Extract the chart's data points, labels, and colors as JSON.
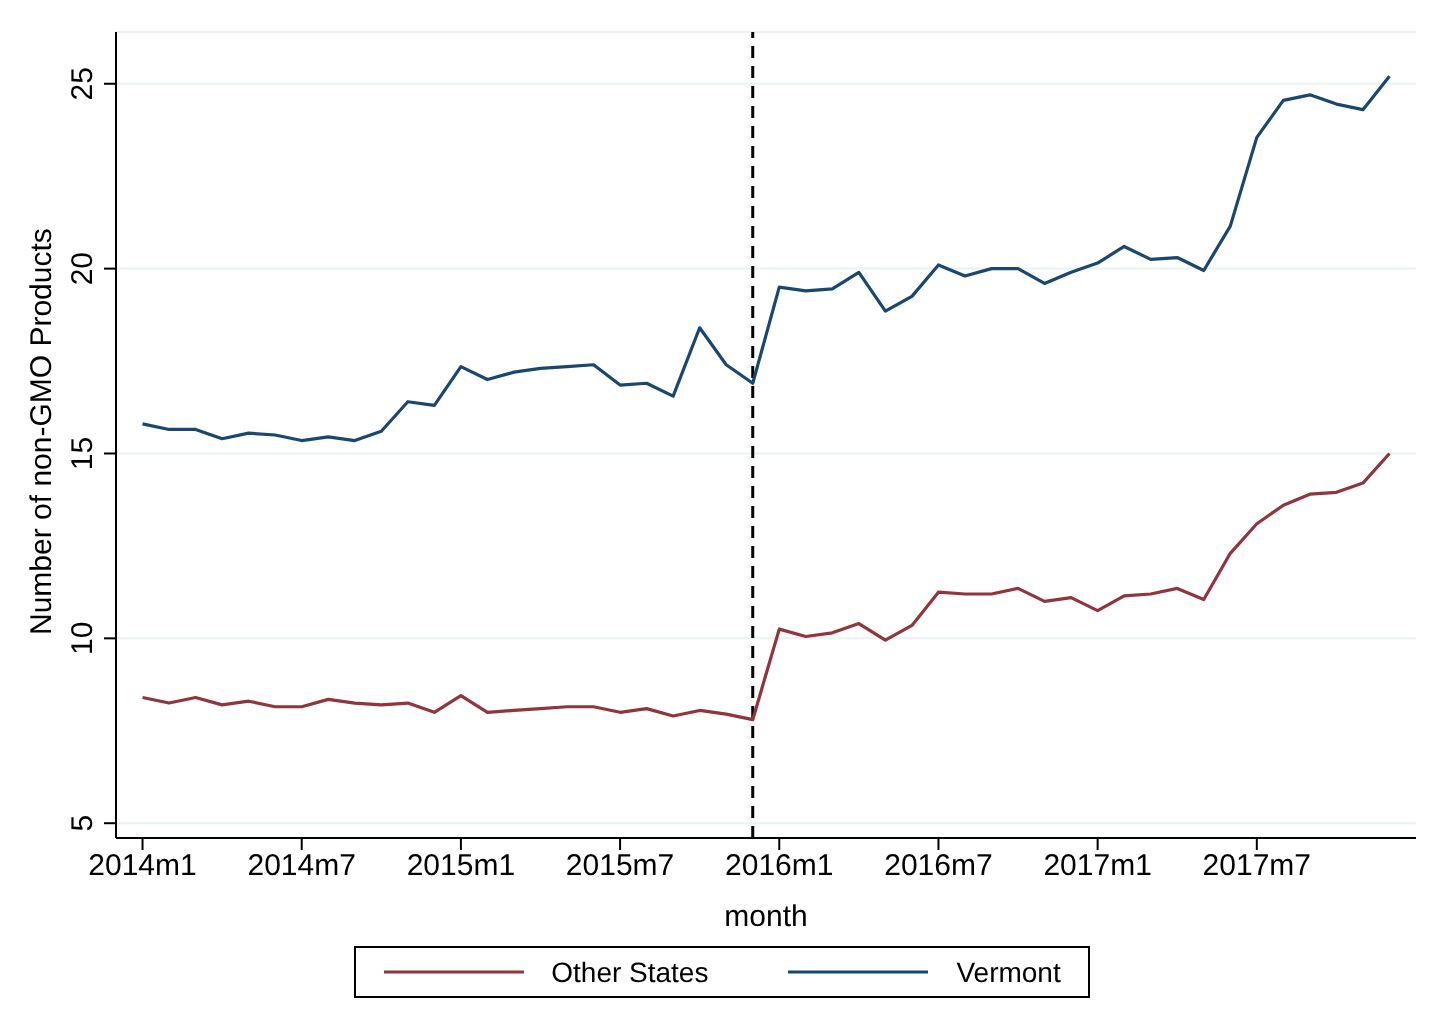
{
  "chart_data": {
    "type": "line",
    "xlabel": "month",
    "ylabel": "Number of non-GMO Products",
    "x": [
      "2014-01",
      "2014-02",
      "2014-03",
      "2014-04",
      "2014-05",
      "2014-06",
      "2014-07",
      "2014-08",
      "2014-09",
      "2014-10",
      "2014-11",
      "2014-12",
      "2015-01",
      "2015-02",
      "2015-03",
      "2015-04",
      "2015-05",
      "2015-06",
      "2015-07",
      "2015-08",
      "2015-09",
      "2015-10",
      "2015-11",
      "2015-12",
      "2016-01",
      "2016-02",
      "2016-03",
      "2016-04",
      "2016-05",
      "2016-06",
      "2016-07",
      "2016-08",
      "2016-09",
      "2016-10",
      "2016-11",
      "2016-12",
      "2017-01",
      "2017-02",
      "2017-03",
      "2017-04",
      "2017-05",
      "2017-06",
      "2017-07",
      "2017-08",
      "2017-09",
      "2017-10",
      "2017-11",
      "2017-12"
    ],
    "series": [
      {
        "name": "Vermont",
        "color": "#1a476f",
        "values": [
          15.8,
          15.65,
          15.65,
          15.4,
          15.55,
          15.5,
          15.35,
          15.45,
          15.35,
          15.6,
          16.4,
          16.3,
          17.35,
          17.0,
          17.2,
          17.3,
          17.35,
          17.4,
          16.85,
          16.9,
          16.55,
          18.4,
          17.4,
          16.9,
          19.5,
          19.4,
          19.45,
          19.9,
          18.85,
          19.25,
          20.1,
          19.8,
          20.0,
          20.0,
          19.6,
          19.9,
          20.15,
          20.6,
          20.25,
          20.3,
          19.95,
          21.15,
          23.55,
          24.55,
          24.7,
          24.45,
          24.3,
          25.2
        ]
      },
      {
        "name": "Other States",
        "color": "#90353b",
        "values": [
          8.4,
          8.25,
          8.4,
          8.2,
          8.3,
          8.15,
          8.15,
          8.35,
          8.25,
          8.2,
          8.25,
          8.0,
          8.45,
          8.0,
          8.05,
          8.1,
          8.15,
          8.15,
          8.0,
          8.1,
          7.9,
          8.05,
          7.95,
          7.8,
          10.25,
          10.05,
          10.15,
          10.4,
          9.95,
          10.35,
          11.25,
          11.2,
          11.2,
          11.35,
          11.0,
          11.1,
          10.75,
          11.15,
          11.2,
          11.35,
          11.05,
          12.3,
          13.1,
          13.6,
          13.9,
          13.95,
          14.2,
          15.0
        ]
      }
    ],
    "xlim": [
      "2013-12",
      "2018-01"
    ],
    "xticks": [
      {
        "value": "2014-01",
        "label": "2014m1"
      },
      {
        "value": "2014-07",
        "label": "2014m7"
      },
      {
        "value": "2015-01",
        "label": "2015m1"
      },
      {
        "value": "2015-07",
        "label": "2015m7"
      },
      {
        "value": "2016-01",
        "label": "2016m1"
      },
      {
        "value": "2016-07",
        "label": "2016m7"
      },
      {
        "value": "2017-01",
        "label": "2017m1"
      },
      {
        "value": "2017-07",
        "label": "2017m7"
      }
    ],
    "ylim": [
      4.6,
      26.4
    ],
    "yticks": [
      5,
      10,
      15,
      20,
      25
    ],
    "grid": "y",
    "legend": "bottom",
    "marker": "none",
    "line_style": "solid",
    "ref_lines": [
      {
        "axis": "x",
        "value": "2015-12",
        "color": "#000000",
        "line_style": "dashed"
      }
    ]
  }
}
